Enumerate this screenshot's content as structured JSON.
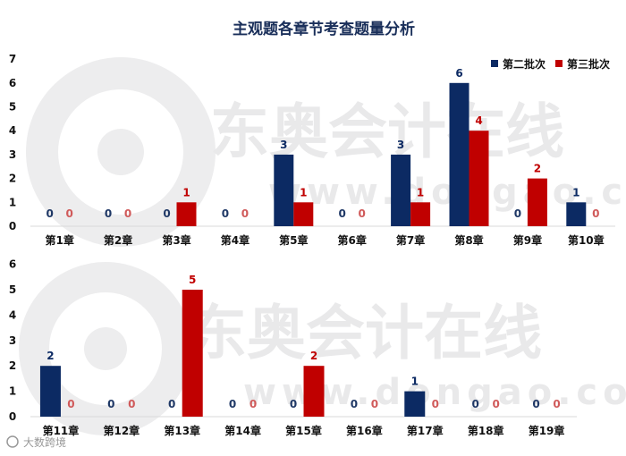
{
  "colors": {
    "series1": "#0c2a63",
    "series2": "#c00000",
    "zero_label_series1": "#1f3866",
    "zero_label_series2": "#d05a5a",
    "watermark": "#e9e9ea"
  },
  "watermark": {
    "text": "东奥会计在线",
    "url": "www.dongao.com"
  },
  "footer": {
    "source_text": "大数跨境"
  },
  "chart_data": [
    {
      "type": "bar",
      "title": "主观题各章节考查题量分析",
      "legend": {
        "placement": "top-right",
        "entries": [
          "第二批次",
          "第三批次"
        ]
      },
      "ylim": [
        0,
        7
      ],
      "yticks": [
        "0",
        "1",
        "2",
        "3",
        "4",
        "5",
        "6",
        "7"
      ],
      "categories": [
        "第1章",
        "第2章",
        "第3章",
        "第4章",
        "第5章",
        "第6章",
        "第7章",
        "第8章",
        "第9章",
        "第10章"
      ],
      "series": [
        {
          "name": "第二批次",
          "values": [
            0,
            0,
            0,
            0,
            3,
            0,
            3,
            6,
            0,
            1
          ]
        },
        {
          "name": "第三批次",
          "values": [
            0,
            0,
            1,
            0,
            1,
            0,
            1,
            4,
            2,
            0
          ]
        }
      ]
    },
    {
      "type": "bar",
      "title": "",
      "ylim": [
        0,
        6
      ],
      "yticks": [
        "0",
        "1",
        "2",
        "3",
        "4",
        "5",
        "6"
      ],
      "categories": [
        "第11章",
        "第12章",
        "第13章",
        "第14章",
        "第15章",
        "第16章",
        "第17章",
        "第18章",
        "第19章"
      ],
      "series": [
        {
          "name": "第二批次",
          "values": [
            2,
            0,
            0,
            0,
            0,
            0,
            1,
            0,
            0
          ]
        },
        {
          "name": "第三批次",
          "values": [
            0,
            0,
            5,
            0,
            2,
            0,
            0,
            0,
            0
          ]
        }
      ]
    }
  ]
}
